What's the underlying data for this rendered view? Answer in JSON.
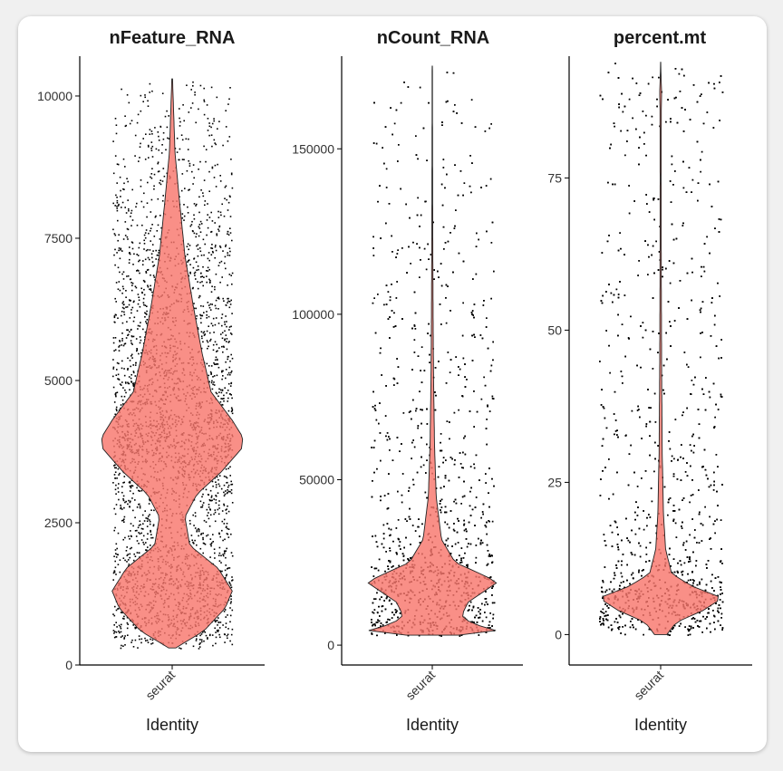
{
  "chart_data": [
    {
      "type": "violin",
      "title": "nFeature_RNA",
      "xlabel": "Identity",
      "ylabel": "",
      "categories": [
        "seurat"
      ],
      "ylim": [
        0,
        10700
      ],
      "yticks": [
        0,
        2500,
        5000,
        7500,
        10000
      ],
      "ytick_labels": [
        "0",
        "2500",
        "5000",
        "7500",
        "10000"
      ],
      "fill_color": "#F8766D",
      "point_color": "#000000",
      "min": 300,
      "max": 10300,
      "density_profile": [
        [
          300,
          0.05
        ],
        [
          600,
          0.45
        ],
        [
          1000,
          0.75
        ],
        [
          1300,
          0.85
        ],
        [
          1700,
          0.65
        ],
        [
          2100,
          0.25
        ],
        [
          2600,
          0.18
        ],
        [
          3000,
          0.35
        ],
        [
          3400,
          0.7
        ],
        [
          3800,
          0.98
        ],
        [
          4000,
          1.0
        ],
        [
          4300,
          0.85
        ],
        [
          4800,
          0.55
        ],
        [
          5500,
          0.42
        ],
        [
          6300,
          0.3
        ],
        [
          7200,
          0.18
        ],
        [
          8200,
          0.1
        ],
        [
          9000,
          0.04
        ],
        [
          10300,
          0.005
        ]
      ]
    },
    {
      "type": "violin",
      "title": "nCount_RNA",
      "xlabel": "Identity",
      "ylabel": "",
      "categories": [
        "seurat"
      ],
      "ylim": [
        -6000,
        178000
      ],
      "yticks": [
        0,
        50000,
        100000,
        150000
      ],
      "ytick_labels": [
        "0",
        "50000",
        "100000",
        "150000"
      ],
      "fill_color": "#F8766D",
      "point_color": "#000000",
      "min": 3000,
      "max": 175000,
      "density_profile": [
        [
          3000,
          0.4
        ],
        [
          4500,
          1.0
        ],
        [
          6500,
          0.6
        ],
        [
          9000,
          0.45
        ],
        [
          13000,
          0.55
        ],
        [
          17000,
          0.85
        ],
        [
          19000,
          1.0
        ],
        [
          21000,
          0.8
        ],
        [
          25000,
          0.35
        ],
        [
          32000,
          0.14
        ],
        [
          45000,
          0.06
        ],
        [
          60000,
          0.035
        ],
        [
          80000,
          0.02
        ],
        [
          95000,
          0.014
        ],
        [
          120000,
          0.008
        ],
        [
          150000,
          0.004
        ],
        [
          175000,
          0.002
        ]
      ]
    },
    {
      "type": "violin",
      "title": "percent.mt",
      "xlabel": "Identity",
      "ylabel": "",
      "categories": [
        "seurat"
      ],
      "ylim": [
        -5,
        95
      ],
      "yticks": [
        0,
        25,
        50,
        75
      ],
      "ytick_labels": [
        "0",
        "25",
        "50",
        "75"
      ],
      "fill_color": "#F8766D",
      "point_color": "#000000",
      "min": 0,
      "max": 94,
      "density_profile": [
        [
          0,
          0.1
        ],
        [
          2,
          0.25
        ],
        [
          4,
          0.7
        ],
        [
          6,
          1.0
        ],
        [
          8,
          0.5
        ],
        [
          10,
          0.18
        ],
        [
          14,
          0.08
        ],
        [
          20,
          0.045
        ],
        [
          30,
          0.025
        ],
        [
          45,
          0.015
        ],
        [
          60,
          0.01
        ],
        [
          75,
          0.008
        ],
        [
          86,
          0.01
        ],
        [
          89,
          0.015
        ],
        [
          92,
          0.006
        ],
        [
          94,
          0.002
        ]
      ]
    }
  ]
}
